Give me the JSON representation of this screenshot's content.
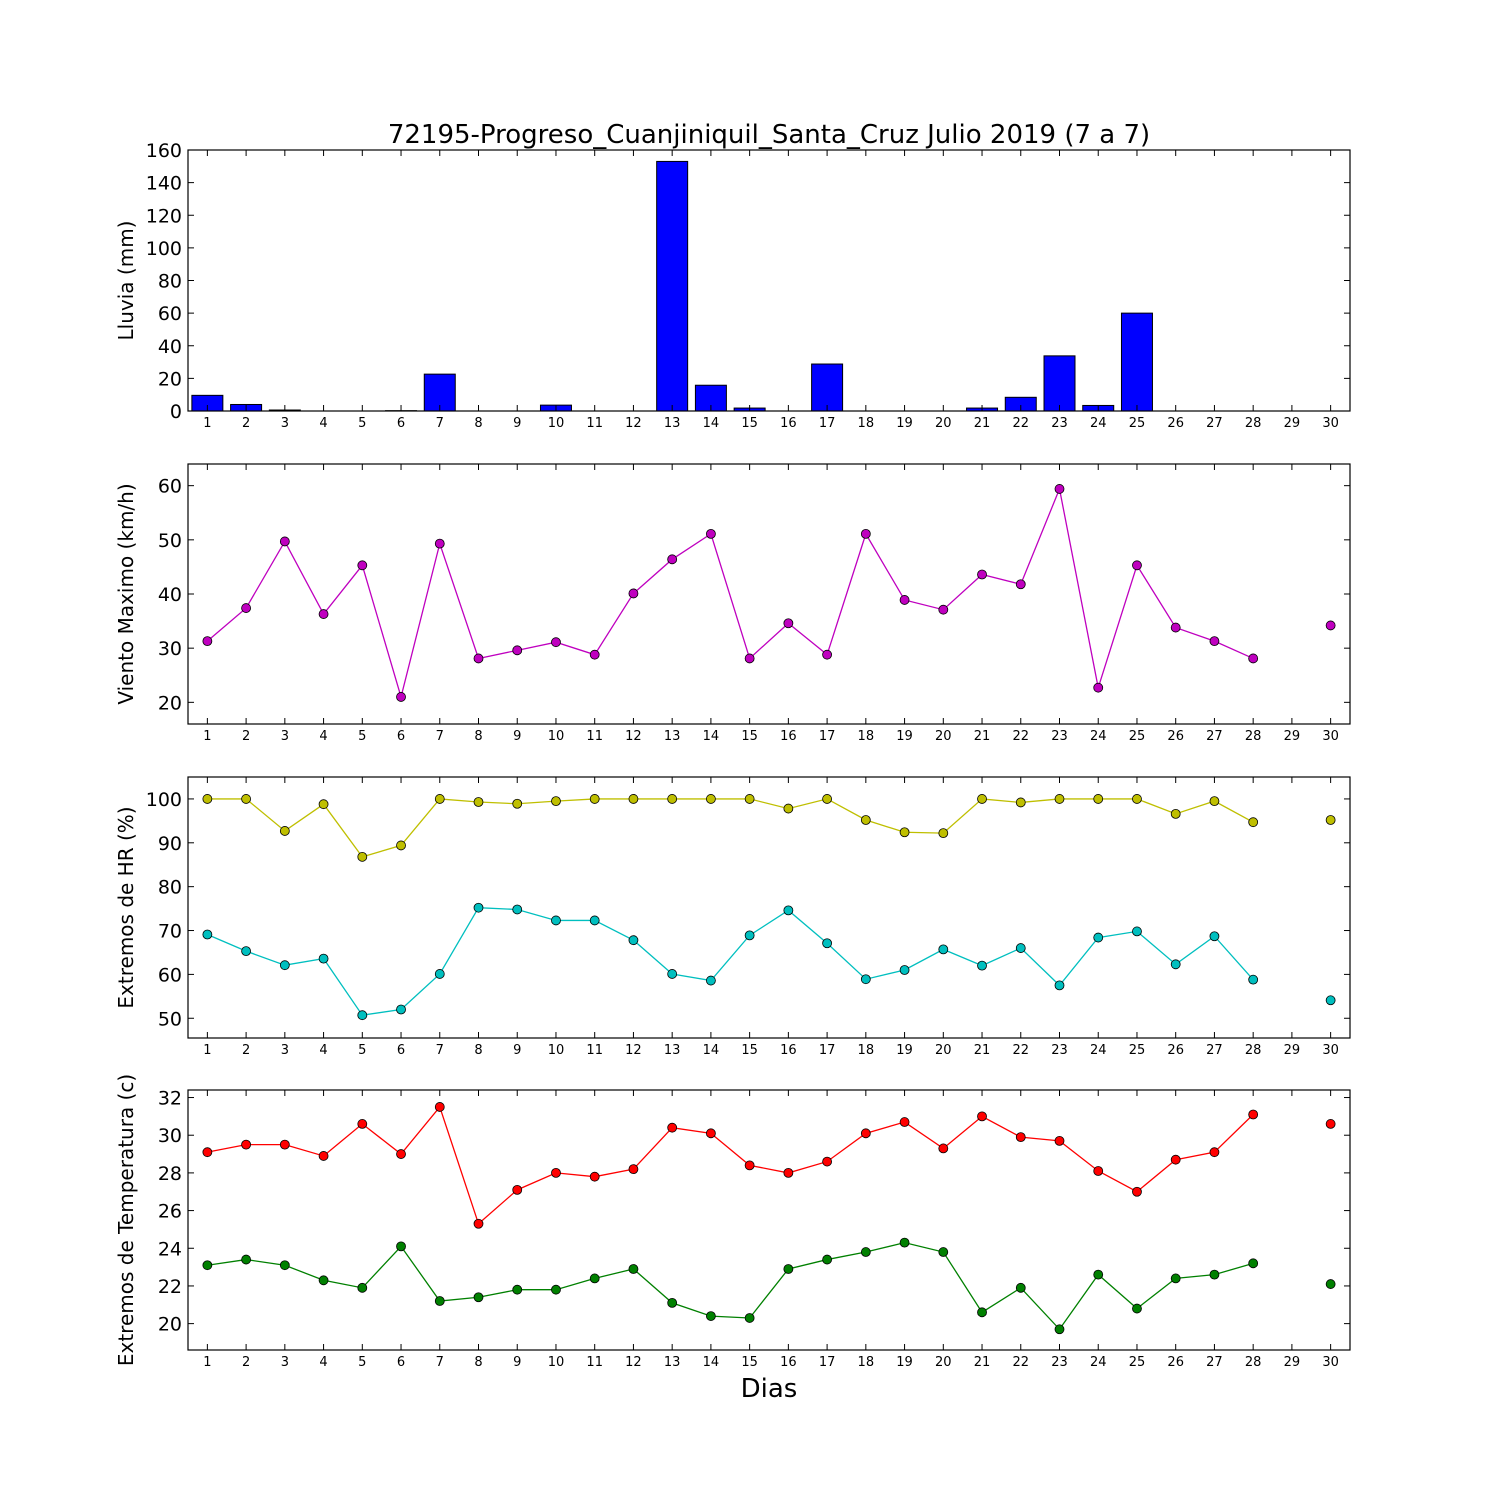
{
  "title": "72195-Progreso_Cuanjiniquil_Santa_Cruz Julio 2019  (7 a 7)",
  "xlabel": "Dias",
  "colors": {
    "rain": "#0000ff",
    "wind": "#bf00bf",
    "hr_max": "#bfbf00",
    "hr_min": "#00bfbf",
    "temp_max": "#ff0000",
    "temp_min": "#008000"
  },
  "chart_data": [
    {
      "type": "bar",
      "ylabel": "Lluvia (mm)",
      "xlim": [
        0.5,
        30.5
      ],
      "ylim": [
        0,
        160
      ],
      "yticks": [
        0,
        20,
        40,
        60,
        80,
        100,
        120,
        140,
        160
      ],
      "xticks": [
        1,
        2,
        3,
        4,
        5,
        6,
        7,
        8,
        9,
        10,
        11,
        12,
        13,
        14,
        15,
        16,
        17,
        18,
        19,
        20,
        21,
        22,
        23,
        24,
        25,
        26,
        27,
        28,
        29,
        30
      ],
      "x": [
        1,
        2,
        3,
        4,
        5,
        6,
        7,
        8,
        9,
        10,
        11,
        12,
        13,
        14,
        15,
        16,
        17,
        18,
        19,
        20,
        21,
        22,
        23,
        24,
        25,
        26,
        27,
        28,
        29,
        30
      ],
      "values": [
        9.6,
        4.0,
        0.6,
        0,
        0,
        0.2,
        22.6,
        0,
        0,
        3.6,
        0,
        0,
        153.0,
        15.8,
        1.8,
        0,
        28.8,
        0,
        0,
        0,
        1.8,
        8.4,
        33.8,
        3.4,
        60.0,
        0,
        0,
        0,
        0,
        0
      ],
      "series": [
        {
          "color": "#0000ff"
        }
      ]
    },
    {
      "type": "line",
      "ylabel": "Viento Maximo (km/h)",
      "xlim": [
        0.5,
        30.5
      ],
      "ylim": [
        16,
        64
      ],
      "yticks": [
        20,
        30,
        40,
        50,
        60
      ],
      "xticks": [
        1,
        2,
        3,
        4,
        5,
        6,
        7,
        8,
        9,
        10,
        11,
        12,
        13,
        14,
        15,
        16,
        17,
        18,
        19,
        20,
        21,
        22,
        23,
        24,
        25,
        26,
        27,
        28,
        29,
        30
      ],
      "x": [
        1,
        2,
        3,
        4,
        5,
        6,
        7,
        8,
        9,
        10,
        11,
        12,
        13,
        14,
        15,
        16,
        17,
        18,
        19,
        20,
        21,
        22,
        23,
        24,
        25,
        26,
        27,
        28,
        29,
        30
      ],
      "series": [
        {
          "color": "#bf00bf",
          "values": [
            31.3,
            37.4,
            49.7,
            36.3,
            45.3,
            21.0,
            49.3,
            28.1,
            29.6,
            31.1,
            28.8,
            40.1,
            46.4,
            51.1,
            28.1,
            34.6,
            28.8,
            51.1,
            38.9,
            37.1,
            43.6,
            41.8,
            59.4,
            22.7,
            45.3,
            33.8,
            31.3,
            28.1,
            null,
            34.2
          ]
        }
      ]
    },
    {
      "type": "line",
      "ylabel": "Extremos de HR (%)",
      "xlim": [
        0.5,
        30.5
      ],
      "ylim": [
        45.5,
        105
      ],
      "yticks": [
        50,
        60,
        70,
        80,
        90,
        100
      ],
      "xticks": [
        1,
        2,
        3,
        4,
        5,
        6,
        7,
        8,
        9,
        10,
        11,
        12,
        13,
        14,
        15,
        16,
        17,
        18,
        19,
        20,
        21,
        22,
        23,
        24,
        25,
        26,
        27,
        28,
        29,
        30
      ],
      "x": [
        1,
        2,
        3,
        4,
        5,
        6,
        7,
        8,
        9,
        10,
        11,
        12,
        13,
        14,
        15,
        16,
        17,
        18,
        19,
        20,
        21,
        22,
        23,
        24,
        25,
        26,
        27,
        28,
        29,
        30
      ],
      "series": [
        {
          "color": "#bfbf00",
          "values": [
            100,
            100,
            92.7,
            98.8,
            86.8,
            89.4,
            100,
            99.3,
            98.9,
            99.5,
            100,
            100,
            100,
            100,
            100,
            97.8,
            100,
            95.2,
            92.4,
            92.2,
            100,
            99.2,
            100,
            100,
            100,
            96.6,
            99.5,
            94.7,
            null,
            95.2
          ]
        },
        {
          "color": "#00bfbf",
          "values": [
            69.1,
            65.3,
            62.1,
            63.6,
            50.7,
            52.0,
            60.1,
            75.2,
            74.8,
            72.3,
            72.3,
            67.8,
            60.1,
            58.6,
            68.9,
            74.6,
            67.1,
            58.9,
            61.0,
            65.7,
            62.0,
            66.0,
            57.5,
            68.4,
            69.8,
            62.3,
            68.7,
            58.8,
            null,
            54.1
          ]
        }
      ]
    },
    {
      "type": "line",
      "ylabel": "Extremos de Temperatura (c)",
      "xlim": [
        0.5,
        30.5
      ],
      "ylim": [
        18.6,
        32.4
      ],
      "yticks": [
        20,
        22,
        24,
        26,
        28,
        30,
        32
      ],
      "xticks": [
        1,
        2,
        3,
        4,
        5,
        6,
        7,
        8,
        9,
        10,
        11,
        12,
        13,
        14,
        15,
        16,
        17,
        18,
        19,
        20,
        21,
        22,
        23,
        24,
        25,
        26,
        27,
        28,
        29,
        30
      ],
      "x": [
        1,
        2,
        3,
        4,
        5,
        6,
        7,
        8,
        9,
        10,
        11,
        12,
        13,
        14,
        15,
        16,
        17,
        18,
        19,
        20,
        21,
        22,
        23,
        24,
        25,
        26,
        27,
        28,
        29,
        30
      ],
      "series": [
        {
          "color": "#ff0000",
          "values": [
            29.1,
            29.5,
            29.5,
            28.9,
            30.6,
            29.0,
            31.5,
            25.3,
            27.1,
            28.0,
            27.8,
            28.2,
            30.4,
            30.1,
            28.4,
            28.0,
            28.6,
            30.1,
            30.7,
            29.3,
            31.0,
            29.9,
            29.7,
            28.1,
            27.0,
            28.7,
            29.1,
            31.1,
            null,
            30.6
          ]
        },
        {
          "color": "#008000",
          "values": [
            23.1,
            23.4,
            23.1,
            22.3,
            21.9,
            24.1,
            21.2,
            21.4,
            21.8,
            21.8,
            22.4,
            22.9,
            21.1,
            20.4,
            20.3,
            22.9,
            23.4,
            23.8,
            24.3,
            23.8,
            20.6,
            21.9,
            19.7,
            22.6,
            20.8,
            22.4,
            22.6,
            23.2,
            null,
            22.1
          ]
        }
      ]
    }
  ]
}
